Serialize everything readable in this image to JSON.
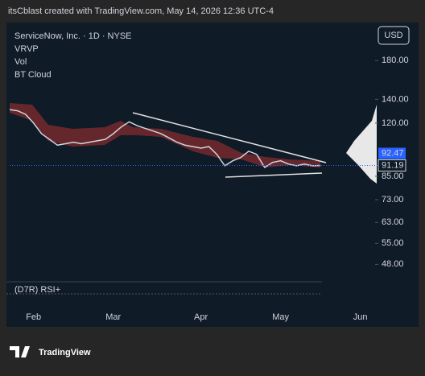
{
  "header": {
    "caption": "itsCblast created with TradingView.com, May 14, 2026 12:36 UTC-4"
  },
  "chart_data": {
    "type": "line",
    "title": "ServiceNow, Inc. · 1D · NYSE",
    "indicators": [
      "VRVP",
      "Vol",
      "BT Cloud"
    ],
    "currency": "USD",
    "log_scale": true,
    "categories": [
      null,
      null,
      null,
      "Feb",
      null,
      null,
      null,
      null,
      null,
      null,
      null,
      null,
      null,
      "Mar",
      null,
      null,
      null,
      null,
      null,
      null,
      null,
      null,
      null,
      null,
      "Apr",
      null,
      null,
      null,
      null,
      null,
      null,
      null,
      null,
      null,
      "May",
      null,
      null,
      null,
      null,
      null,
      null,
      null,
      null,
      null,
      "Jun"
    ],
    "series": [
      {
        "name": "Close",
        "color": "#d1d4dc",
        "values": [
          131,
          130,
          127,
          120,
          112,
          108,
          104,
          105,
          106,
          105,
          106,
          107,
          108,
          112,
          117,
          121,
          118,
          116,
          114,
          112,
          109,
          106,
          104,
          103,
          102,
          103,
          98,
          91,
          94,
          96,
          100,
          98,
          90,
          93,
          94,
          92,
          91,
          92,
          91,
          91.19,
          null,
          null,
          null,
          null,
          null
        ]
      }
    ],
    "last_price": 91.19,
    "price_marker": 92.47,
    "ylim": [
      44,
      228
    ],
    "yticks": [
      {
        "value": 48,
        "label": "48.00"
      },
      {
        "value": 55,
        "label": "55.00"
      },
      {
        "value": 63,
        "label": "63.00"
      },
      {
        "value": 73,
        "label": "73.00"
      },
      {
        "value": 85,
        "label": "85.00"
      },
      {
        "value": 120,
        "label": "120.00"
      },
      {
        "value": 140,
        "label": "140.00"
      },
      {
        "value": 180,
        "label": "180.00"
      }
    ],
    "panel_label": "(D7R) RSI+"
  },
  "footer": {
    "brand": "TradingView"
  }
}
